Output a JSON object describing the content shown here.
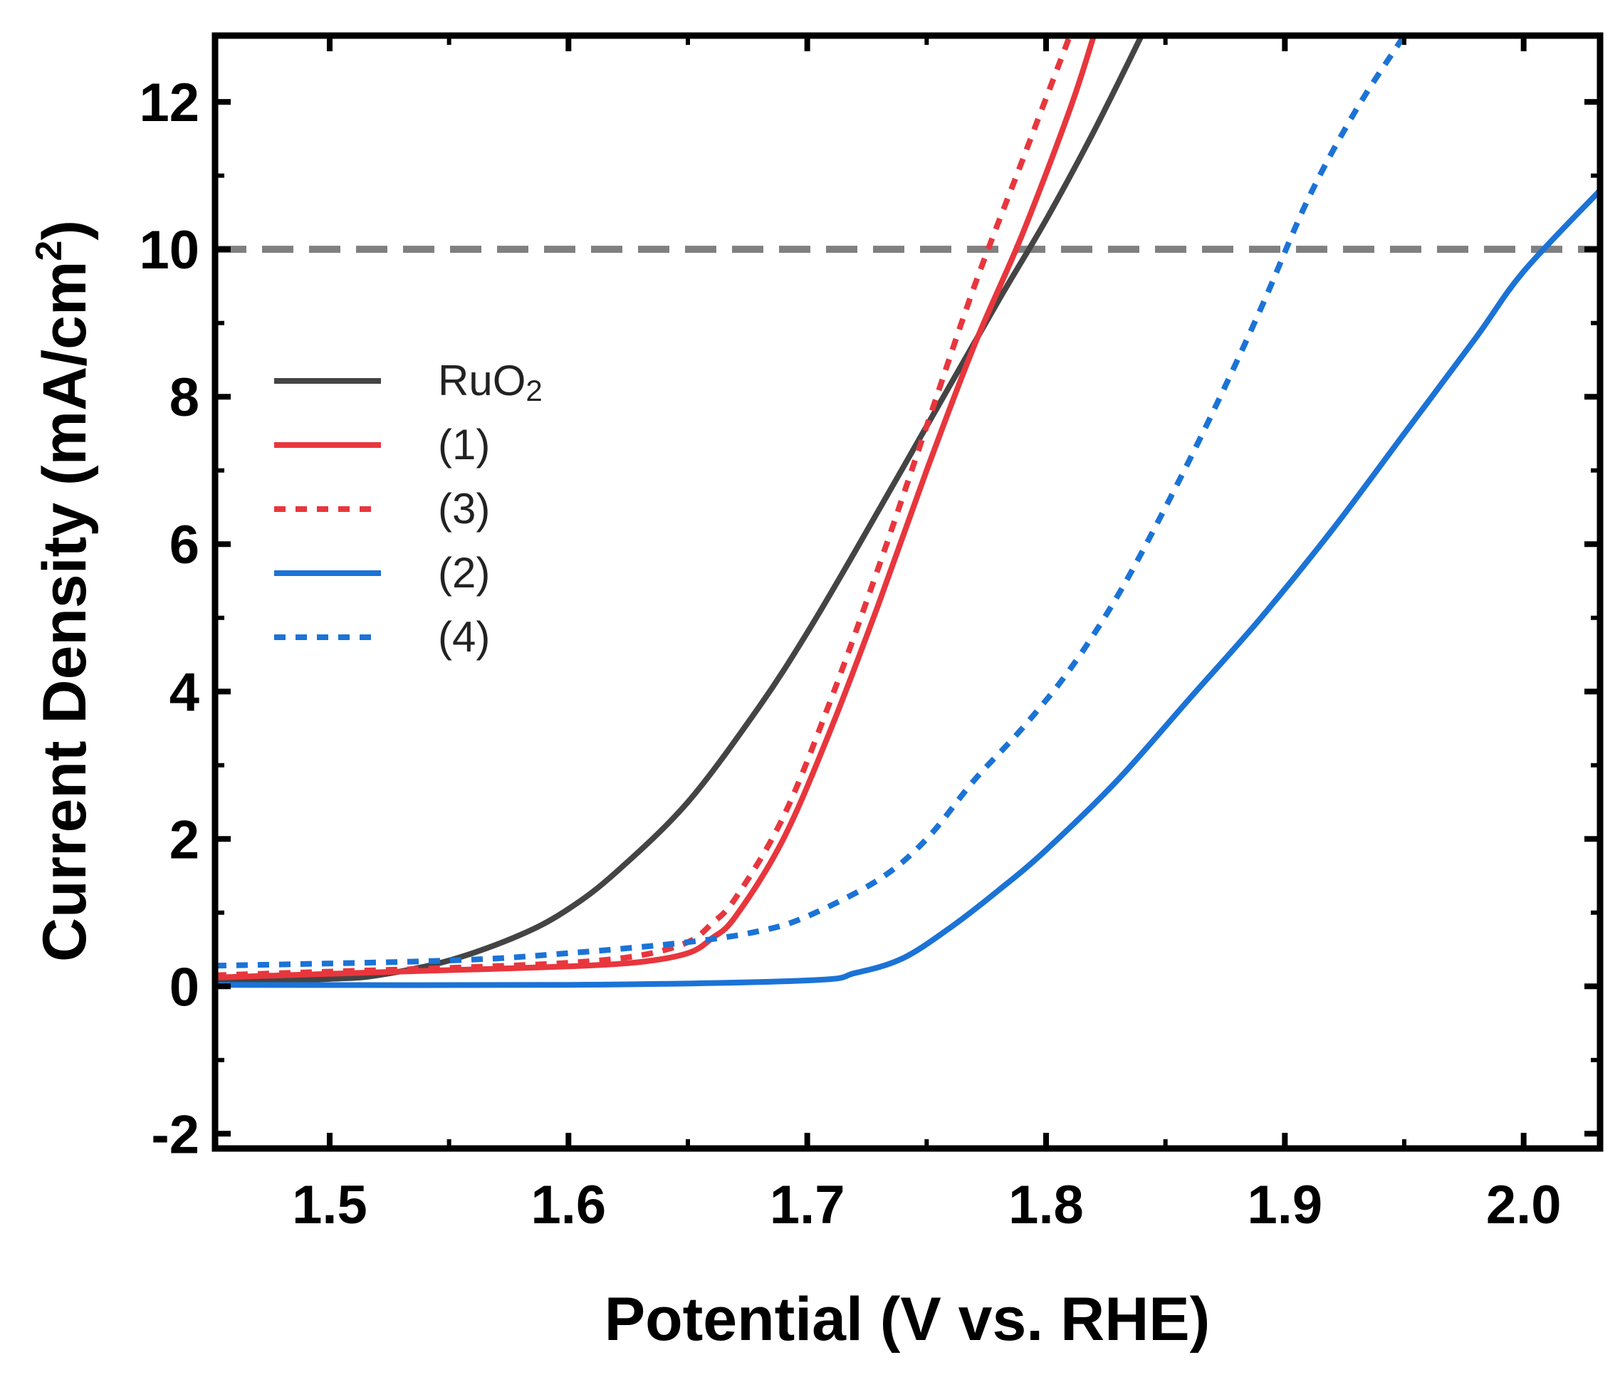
{
  "chart_data": {
    "type": "line",
    "title": "",
    "xlabel": "Potential (V vs. RHE)",
    "ylabel_main": "Current Density (mA/cm",
    "ylabel_sup": "2",
    "ylabel_end": ")",
    "xlim": [
      1.452,
      2.032
    ],
    "ylim": [
      -2.2,
      12.9
    ],
    "xticks": [
      1.5,
      1.6,
      1.7,
      1.8,
      1.9,
      2.0
    ],
    "xtick_labels": [
      "1.5",
      "1.6",
      "1.7",
      "1.8",
      "1.9",
      "2.0"
    ],
    "yticks": [
      -2,
      0,
      2,
      4,
      6,
      8,
      10,
      12
    ],
    "ytick_labels": [
      "-2",
      "0",
      "2",
      "4",
      "6",
      "8",
      "10",
      "12"
    ],
    "reference_line": {
      "y": 10,
      "color": "#808080",
      "style": "dashed"
    },
    "legend_position": "center-left",
    "series": [
      {
        "name": "RuO",
        "name_sub": "2",
        "color": "#444444",
        "style": "solid",
        "x": [
          1.452,
          1.5,
          1.52,
          1.55,
          1.58,
          1.6,
          1.62,
          1.65,
          1.68,
          1.7,
          1.72,
          1.75,
          1.78,
          1.8,
          1.82,
          1.84
        ],
        "y": [
          0.05,
          0.1,
          0.15,
          0.35,
          0.7,
          1.05,
          1.55,
          2.5,
          3.8,
          4.8,
          5.9,
          7.6,
          9.3,
          10.4,
          11.6,
          12.9
        ]
      },
      {
        "name": "(1)",
        "name_sub": "",
        "color": "#e8363d",
        "style": "solid",
        "x": [
          1.452,
          1.5,
          1.55,
          1.6,
          1.63,
          1.65,
          1.66,
          1.67,
          1.69,
          1.71,
          1.73,
          1.75,
          1.77,
          1.79,
          1.81,
          1.82
        ],
        "y": [
          0.12,
          0.17,
          0.22,
          0.27,
          0.33,
          0.45,
          0.65,
          0.95,
          2.0,
          3.5,
          5.2,
          7.0,
          8.7,
          10.2,
          11.9,
          12.9
        ]
      },
      {
        "name": "(3)",
        "name_sub": "",
        "color": "#e8363d",
        "style": "dotted",
        "x": [
          1.452,
          1.5,
          1.55,
          1.6,
          1.63,
          1.65,
          1.66,
          1.67,
          1.69,
          1.71,
          1.73,
          1.75,
          1.77,
          1.79,
          1.81
        ],
        "y": [
          0.15,
          0.2,
          0.25,
          0.32,
          0.42,
          0.6,
          0.85,
          1.2,
          2.3,
          3.9,
          5.7,
          7.6,
          9.5,
          11.2,
          12.9
        ]
      },
      {
        "name": "(2)",
        "name_sub": "",
        "color": "#1b73d6",
        "style": "solid",
        "x": [
          1.452,
          1.6,
          1.7,
          1.72,
          1.74,
          1.76,
          1.78,
          1.8,
          1.83,
          1.86,
          1.89,
          1.92,
          1.95,
          1.98,
          2.0,
          2.032
        ],
        "y": [
          0.02,
          0.02,
          0.08,
          0.18,
          0.38,
          0.8,
          1.3,
          1.85,
          2.8,
          3.9,
          5.0,
          6.2,
          7.5,
          8.8,
          9.7,
          10.8
        ]
      },
      {
        "name": "(4)",
        "name_sub": "",
        "color": "#1b73d6",
        "style": "dotted",
        "x": [
          1.452,
          1.55,
          1.6,
          1.65,
          1.68,
          1.7,
          1.73,
          1.75,
          1.77,
          1.79,
          1.81,
          1.83,
          1.85,
          1.87,
          1.89,
          1.91,
          1.93,
          1.95
        ],
        "y": [
          0.28,
          0.35,
          0.45,
          0.6,
          0.75,
          0.95,
          1.45,
          2.0,
          2.8,
          3.5,
          4.3,
          5.3,
          6.5,
          7.8,
          9.2,
          10.7,
          11.9,
          12.9
        ]
      }
    ]
  }
}
